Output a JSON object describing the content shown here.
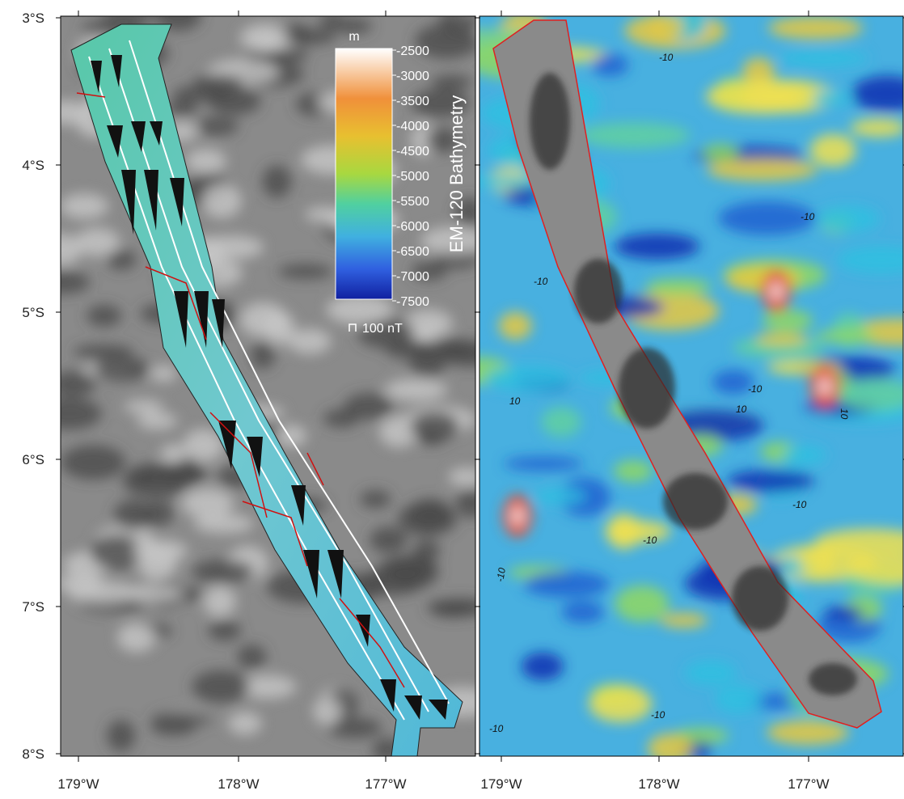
{
  "lat_labels": [
    "3°S",
    "4°S",
    "5°S",
    "6°S",
    "7°S",
    "8°S"
  ],
  "left_panel": {
    "lon_labels": [
      "179°W",
      "178°W",
      "177°W"
    ],
    "colorbar": {
      "unit": "m",
      "ticks": [
        -2500,
        -3000,
        -3500,
        -4000,
        -4500,
        -5000,
        -5500,
        -6000,
        -6500,
        -7000,
        -7500
      ],
      "title": "EM-120 Bathymetry",
      "scale_label": "100 nT"
    }
  },
  "right_panel": {
    "lon_labels": [
      "179°W",
      "178°W",
      "177°W"
    ],
    "contour_labels": [
      "-10",
      "-10",
      "-10",
      "-10",
      "10",
      "10",
      "10",
      "-10",
      "-10",
      "-10",
      "-10",
      "-10"
    ]
  }
}
